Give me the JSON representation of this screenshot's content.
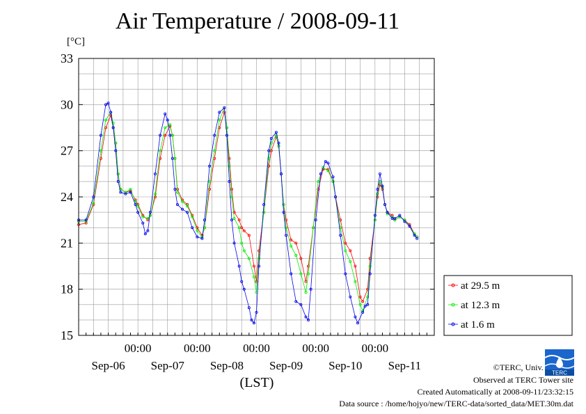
{
  "chart_data": {
    "type": "line",
    "title": "Air Temperature / 2008-09-11",
    "ylabel": "[°C]",
    "xlabel": "(LST)",
    "ylim": [
      15,
      33
    ],
    "yticks": [
      15,
      18,
      21,
      24,
      27,
      30,
      33
    ],
    "x_tick_labels": [
      "00:00",
      "00:00",
      "00:00",
      "00:00",
      "00:00"
    ],
    "x_date_labels": [
      "Sep-06",
      "Sep-07",
      "Sep-08",
      "Sep-09",
      "Sep-10",
      "Sep-11"
    ],
    "xlim_hours": [
      0,
      144
    ],
    "grid": true,
    "legend_position": "right",
    "series": [
      {
        "name": "at 29.5 m",
        "color": "#ff0000",
        "points": [
          [
            0,
            22.2
          ],
          [
            3,
            22.3
          ],
          [
            6,
            23.5
          ],
          [
            9,
            26.5
          ],
          [
            11,
            28.5
          ],
          [
            13,
            29.3
          ],
          [
            14,
            28.5
          ],
          [
            15,
            27.5
          ],
          [
            16,
            25.5
          ],
          [
            17,
            24.5
          ],
          [
            19,
            24.3
          ],
          [
            21,
            24.4
          ],
          [
            23,
            23.8
          ],
          [
            24,
            23.5
          ],
          [
            26,
            22.8
          ],
          [
            28,
            22.5
          ],
          [
            29,
            22.8
          ],
          [
            31,
            24.0
          ],
          [
            33,
            26.5
          ],
          [
            35,
            28.0
          ],
          [
            37,
            28.6
          ],
          [
            38,
            28.0
          ],
          [
            39,
            26.5
          ],
          [
            40,
            24.5
          ],
          [
            42,
            23.8
          ],
          [
            44,
            23.5
          ],
          [
            46,
            22.8
          ],
          [
            48,
            22.0
          ],
          [
            50,
            21.5
          ],
          [
            51,
            22.0
          ],
          [
            53,
            24.5
          ],
          [
            55,
            26.5
          ],
          [
            57,
            28.5
          ],
          [
            59,
            29.5
          ],
          [
            60,
            28.5
          ],
          [
            61,
            26.5
          ],
          [
            62,
            24.5
          ],
          [
            63,
            23.0
          ],
          [
            65,
            22.5
          ],
          [
            66,
            22.0
          ],
          [
            67,
            21.8
          ],
          [
            69,
            21.5
          ],
          [
            71,
            19.5
          ],
          [
            72,
            18.5
          ],
          [
            73,
            20.5
          ],
          [
            75,
            23.0
          ],
          [
            77,
            26.0
          ],
          [
            78,
            27.0
          ],
          [
            80,
            27.9
          ],
          [
            81,
            27.3
          ],
          [
            82,
            25.5
          ],
          [
            83,
            23.5
          ],
          [
            84,
            22.5
          ],
          [
            86,
            21.2
          ],
          [
            88,
            21.0
          ],
          [
            90,
            20.0
          ],
          [
            92,
            18.5
          ],
          [
            93,
            19.5
          ],
          [
            95,
            22.0
          ],
          [
            97,
            24.5
          ],
          [
            99,
            25.8
          ],
          [
            101,
            25.8
          ],
          [
            103,
            25.0
          ],
          [
            104,
            24.0
          ],
          [
            106,
            22.5
          ],
          [
            108,
            21.0
          ],
          [
            110,
            20.5
          ],
          [
            112,
            19.5
          ],
          [
            114,
            17.5
          ],
          [
            115,
            17.2
          ],
          [
            117,
            18.0
          ],
          [
            118,
            20.0
          ],
          [
            120,
            22.5
          ],
          [
            121,
            24.0
          ],
          [
            122,
            24.8
          ],
          [
            123,
            24.5
          ],
          [
            124,
            23.5
          ],
          [
            125,
            23.0
          ],
          [
            127,
            22.8
          ],
          [
            128,
            22.5
          ],
          [
            130,
            22.7
          ],
          [
            132,
            22.5
          ],
          [
            134,
            22.2
          ],
          [
            136,
            21.6
          ],
          [
            137,
            21.4
          ]
        ]
      },
      {
        "name": "at 12.3 m",
        "color": "#00ee00",
        "points": [
          [
            0,
            22.4
          ],
          [
            3,
            22.4
          ],
          [
            6,
            23.6
          ],
          [
            9,
            27.0
          ],
          [
            11,
            29.0
          ],
          [
            13,
            29.5
          ],
          [
            14,
            28.8
          ],
          [
            15,
            27.5
          ],
          [
            16,
            25.5
          ],
          [
            17,
            24.5
          ],
          [
            19,
            24.3
          ],
          [
            21,
            24.5
          ],
          [
            23,
            23.7
          ],
          [
            24,
            23.4
          ],
          [
            26,
            22.7
          ],
          [
            28,
            22.6
          ],
          [
            29,
            22.8
          ],
          [
            31,
            24.2
          ],
          [
            33,
            27.0
          ],
          [
            35,
            28.5
          ],
          [
            37,
            28.7
          ],
          [
            38,
            28.0
          ],
          [
            39,
            26.5
          ],
          [
            40,
            24.3
          ],
          [
            42,
            23.7
          ],
          [
            44,
            23.4
          ],
          [
            46,
            22.7
          ],
          [
            48,
            21.8
          ],
          [
            50,
            21.4
          ],
          [
            51,
            22.0
          ],
          [
            53,
            25.0
          ],
          [
            55,
            27.0
          ],
          [
            57,
            29.0
          ],
          [
            59,
            29.8
          ],
          [
            60,
            28.5
          ],
          [
            61,
            26.0
          ],
          [
            62,
            24.0
          ],
          [
            63,
            22.6
          ],
          [
            65,
            22.0
          ],
          [
            66,
            21.0
          ],
          [
            67,
            20.5
          ],
          [
            69,
            20.0
          ],
          [
            71,
            18.8
          ],
          [
            72,
            17.8
          ],
          [
            73,
            20.0
          ],
          [
            75,
            23.0
          ],
          [
            77,
            26.5
          ],
          [
            78,
            27.5
          ],
          [
            80,
            28.0
          ],
          [
            81,
            27.3
          ],
          [
            82,
            25.5
          ],
          [
            83,
            23.5
          ],
          [
            84,
            22.0
          ],
          [
            86,
            20.8
          ],
          [
            88,
            20.2
          ],
          [
            90,
            19.0
          ],
          [
            92,
            17.8
          ],
          [
            93,
            19.0
          ],
          [
            95,
            22.0
          ],
          [
            97,
            25.0
          ],
          [
            99,
            25.9
          ],
          [
            101,
            25.7
          ],
          [
            103,
            25.0
          ],
          [
            104,
            24.0
          ],
          [
            106,
            22.0
          ],
          [
            108,
            20.5
          ],
          [
            110,
            19.8
          ],
          [
            112,
            18.5
          ],
          [
            114,
            17.0
          ],
          [
            115,
            16.6
          ],
          [
            117,
            17.5
          ],
          [
            118,
            19.5
          ],
          [
            120,
            22.5
          ],
          [
            121,
            24.2
          ],
          [
            122,
            25.0
          ],
          [
            123,
            24.6
          ],
          [
            124,
            23.5
          ],
          [
            125,
            22.9
          ],
          [
            127,
            22.7
          ],
          [
            128,
            22.5
          ],
          [
            130,
            22.7
          ],
          [
            132,
            22.5
          ],
          [
            134,
            22.1
          ],
          [
            136,
            21.6
          ],
          [
            137,
            21.4
          ]
        ]
      },
      {
        "name": "at 1.6 m",
        "color": "#0000ee",
        "points": [
          [
            0,
            22.5
          ],
          [
            3,
            22.5
          ],
          [
            6,
            24.0
          ],
          [
            9,
            28.0
          ],
          [
            11,
            30.0
          ],
          [
            12,
            30.1
          ],
          [
            13,
            29.5
          ],
          [
            14,
            28.5
          ],
          [
            15,
            27.0
          ],
          [
            16,
            25.0
          ],
          [
            17,
            24.3
          ],
          [
            19,
            24.2
          ],
          [
            21,
            24.3
          ],
          [
            23,
            23.5
          ],
          [
            24,
            23.0
          ],
          [
            26,
            22.3
          ],
          [
            27,
            21.6
          ],
          [
            28,
            21.8
          ],
          [
            29,
            23.0
          ],
          [
            31,
            25.5
          ],
          [
            33,
            28.0
          ],
          [
            35,
            29.4
          ],
          [
            36,
            29.0
          ],
          [
            37,
            28.0
          ],
          [
            38,
            26.5
          ],
          [
            39,
            24.5
          ],
          [
            40,
            23.5
          ],
          [
            42,
            23.2
          ],
          [
            44,
            23.0
          ],
          [
            46,
            22.0
          ],
          [
            48,
            21.4
          ],
          [
            50,
            21.3
          ],
          [
            51,
            22.5
          ],
          [
            53,
            26.0
          ],
          [
            55,
            28.0
          ],
          [
            57,
            29.5
          ],
          [
            59,
            29.8
          ],
          [
            60,
            28.0
          ],
          [
            61,
            25.0
          ],
          [
            62,
            22.5
          ],
          [
            63,
            21.0
          ],
          [
            65,
            19.5
          ],
          [
            66,
            18.5
          ],
          [
            67,
            18.0
          ],
          [
            69,
            16.8
          ],
          [
            70,
            16.0
          ],
          [
            71,
            15.8
          ],
          [
            72,
            16.5
          ],
          [
            73,
            19.5
          ],
          [
            75,
            23.5
          ],
          [
            77,
            27.0
          ],
          [
            78,
            27.8
          ],
          [
            80,
            28.2
          ],
          [
            81,
            27.5
          ],
          [
            82,
            25.5
          ],
          [
            83,
            23.0
          ],
          [
            84,
            21.5
          ],
          [
            86,
            19.0
          ],
          [
            88,
            17.2
          ],
          [
            90,
            17.0
          ],
          [
            92,
            16.2
          ],
          [
            93,
            16.0
          ],
          [
            94,
            18.0
          ],
          [
            96,
            22.5
          ],
          [
            98,
            25.5
          ],
          [
            100,
            26.3
          ],
          [
            101,
            26.2
          ],
          [
            103,
            25.3
          ],
          [
            104,
            24.0
          ],
          [
            106,
            21.5
          ],
          [
            108,
            19.0
          ],
          [
            110,
            17.5
          ],
          [
            112,
            16.2
          ],
          [
            113,
            15.8
          ],
          [
            115,
            16.5
          ],
          [
            116,
            16.9
          ],
          [
            117,
            17.0
          ],
          [
            118,
            19.0
          ],
          [
            120,
            22.8
          ],
          [
            121,
            24.5
          ],
          [
            122,
            25.5
          ],
          [
            123,
            24.7
          ],
          [
            124,
            23.5
          ],
          [
            125,
            23.0
          ],
          [
            127,
            22.6
          ],
          [
            128,
            22.6
          ],
          [
            130,
            22.8
          ],
          [
            132,
            22.4
          ],
          [
            134,
            22.1
          ],
          [
            136,
            21.5
          ],
          [
            137,
            21.3
          ]
        ]
      }
    ]
  },
  "credits": {
    "copyright": "©TERC, Univ. Tsukuba",
    "observed": "Observed at TERC Tower site",
    "created": "Created Automatically at 2008-09-11/23:32:15",
    "source": "Data source : /home/hojyo/new/TERC-data/sorted_data/MET.30m.dat"
  },
  "logo_text": "TERC",
  "colors": {
    "frame": "#000000",
    "grid": "#999999",
    "logo": "#1a66cc"
  }
}
